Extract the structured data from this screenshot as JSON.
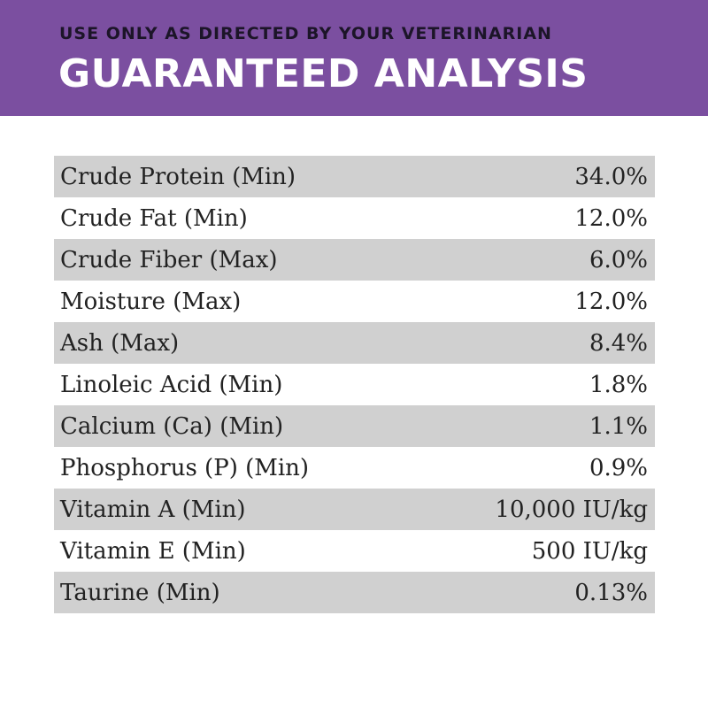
{
  "header": {
    "subtitle": "USE ONLY AS DIRECTED BY YOUR VETERINARIAN",
    "title": "GUARANTEED ANALYSIS"
  },
  "table": {
    "rows": [
      [
        "Crude Protein (Min)",
        "34.0%"
      ],
      [
        "Crude Fat (Min)",
        "12.0%"
      ],
      [
        "Crude Fiber (Max)",
        "6.0%"
      ],
      [
        "Moisture (Max)",
        "12.0%"
      ],
      [
        "Ash (Max)",
        "8.4%"
      ],
      [
        "Linoleic Acid (Min)",
        "1.8%"
      ],
      [
        "Calcium (Ca) (Min)",
        "1.1%"
      ],
      [
        "Phosphorus (P) (Min)",
        "0.9%"
      ],
      [
        "Vitamin A (Min)",
        "10,000 IU/kg"
      ],
      [
        "Vitamin E (Min)",
        "500 IU/kg"
      ],
      [
        "Taurine (Min)",
        "0.13%"
      ]
    ]
  }
}
